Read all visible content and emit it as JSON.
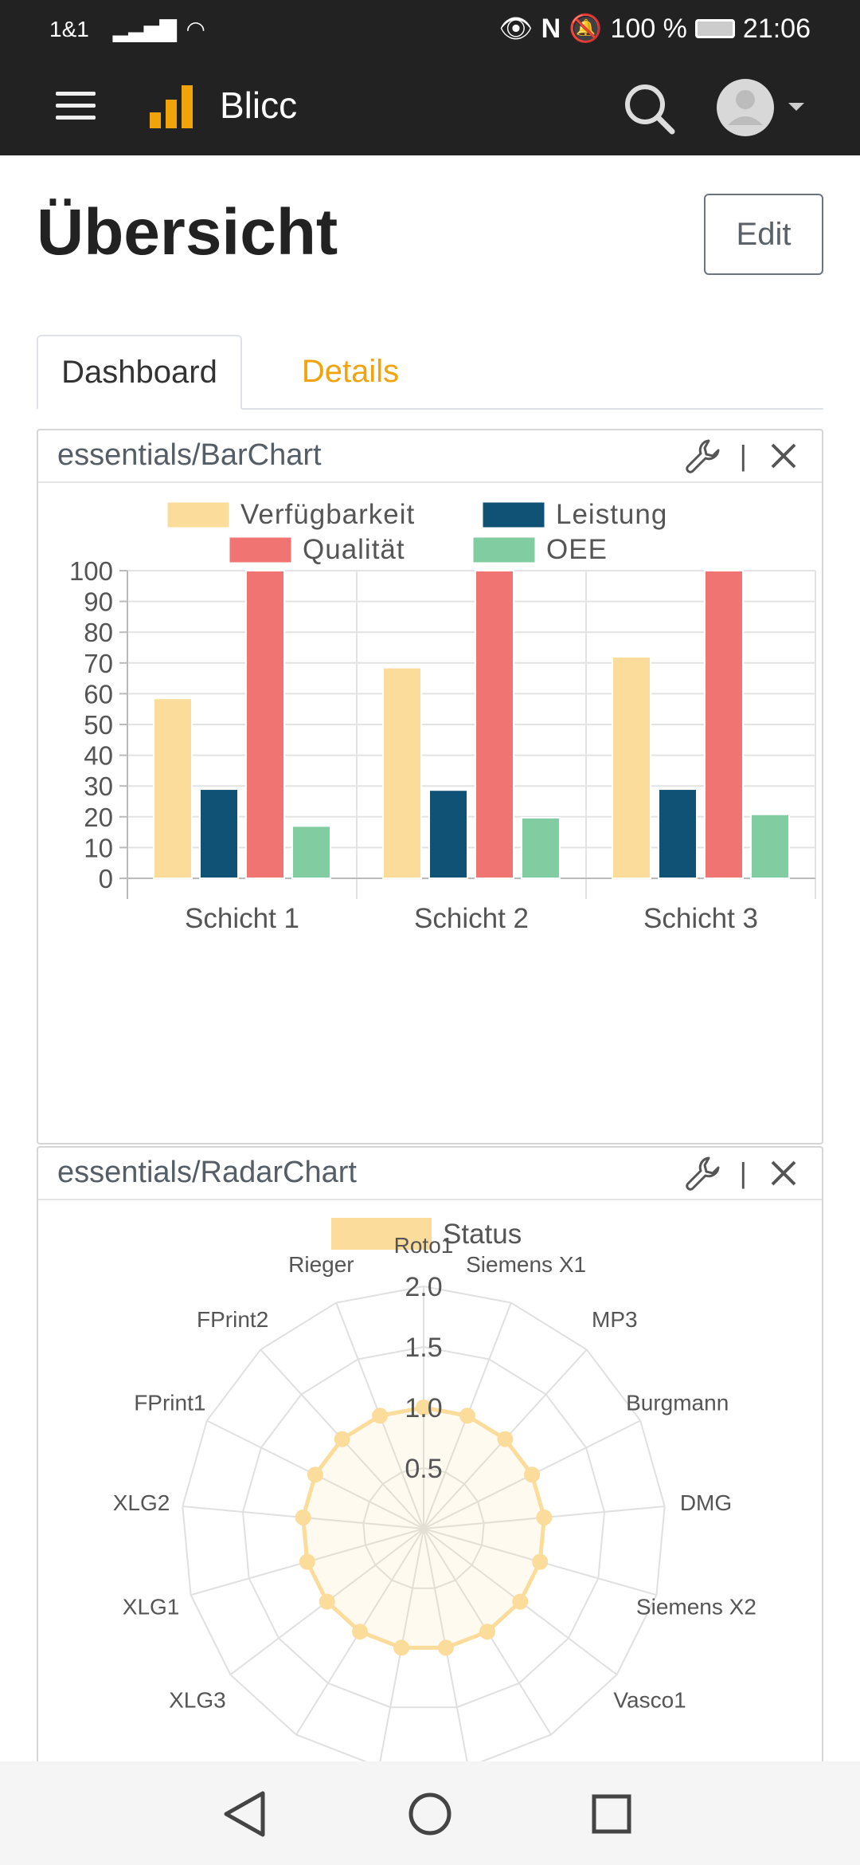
{
  "status_bar": {
    "carrier": "1&1",
    "battery": "100 %",
    "time": "21:06"
  },
  "app_bar": {
    "title": "Blicc",
    "icons": [
      "menu-icon",
      "logo-bars-icon",
      "search-icon",
      "avatar-icon",
      "caret-down-icon"
    ]
  },
  "page": {
    "title": "Übersicht",
    "edit_label": "Edit"
  },
  "tabs": [
    {
      "label": "Dashboard",
      "active": true
    },
    {
      "label": "Details",
      "active": false
    }
  ],
  "cards": {
    "bar": {
      "title": "essentials/BarChart"
    },
    "radar": {
      "title": "essentials/RadarChart"
    }
  },
  "colors": {
    "accent": "#f0a30a",
    "dark": "#222222",
    "verfuegbarkeit": "#fbdc9a",
    "leistung": "#0f5275",
    "qualitaet": "#ef7472",
    "oee": "#82cca1"
  },
  "chart_data": [
    {
      "type": "bar",
      "categories": [
        "Schicht 1",
        "Schicht 2",
        "Schicht 3"
      ],
      "series": [
        {
          "name": "Verfügbarkeit",
          "color": "#fbdc9a",
          "values": [
            58.5,
            68.5,
            72
          ]
        },
        {
          "name": "Leistung",
          "color": "#0f5275",
          "values": [
            29,
            28.7,
            29
          ]
        },
        {
          "name": "Qualität",
          "color": "#ef7472",
          "values": [
            100,
            100,
            100
          ]
        },
        {
          "name": "OEE",
          "color": "#82cca1",
          "values": [
            17,
            19.7,
            20.8
          ]
        }
      ],
      "ylim": [
        0,
        100
      ],
      "yticks": [
        "0",
        "10",
        "20",
        "30",
        "40",
        "50",
        "60",
        "70",
        "80",
        "90",
        "100"
      ],
      "legend_position": "top",
      "grid": true
    },
    {
      "type": "radar",
      "axes": [
        "Roto1",
        "Siemens X1",
        "MP3",
        "Burgmann",
        "DMG",
        "Siemens X2",
        "Vasco1",
        "",
        "",
        "",
        "",
        "XLG3",
        "XLG1",
        "XLG2",
        "FPrint1",
        "FPrint2",
        "Rieger"
      ],
      "series": [
        {
          "name": "Status",
          "color": "#fbdc9a",
          "values": [
            1,
            1,
            1,
            1,
            1,
            1,
            1,
            1,
            1,
            1,
            1,
            1,
            1,
            1,
            1,
            1,
            1
          ]
        }
      ],
      "rticks": [
        "0.5",
        "1.0",
        "1.5",
        "2.0"
      ],
      "rlim": [
        0,
        2
      ],
      "legend_position": "top",
      "grid": true
    }
  ]
}
